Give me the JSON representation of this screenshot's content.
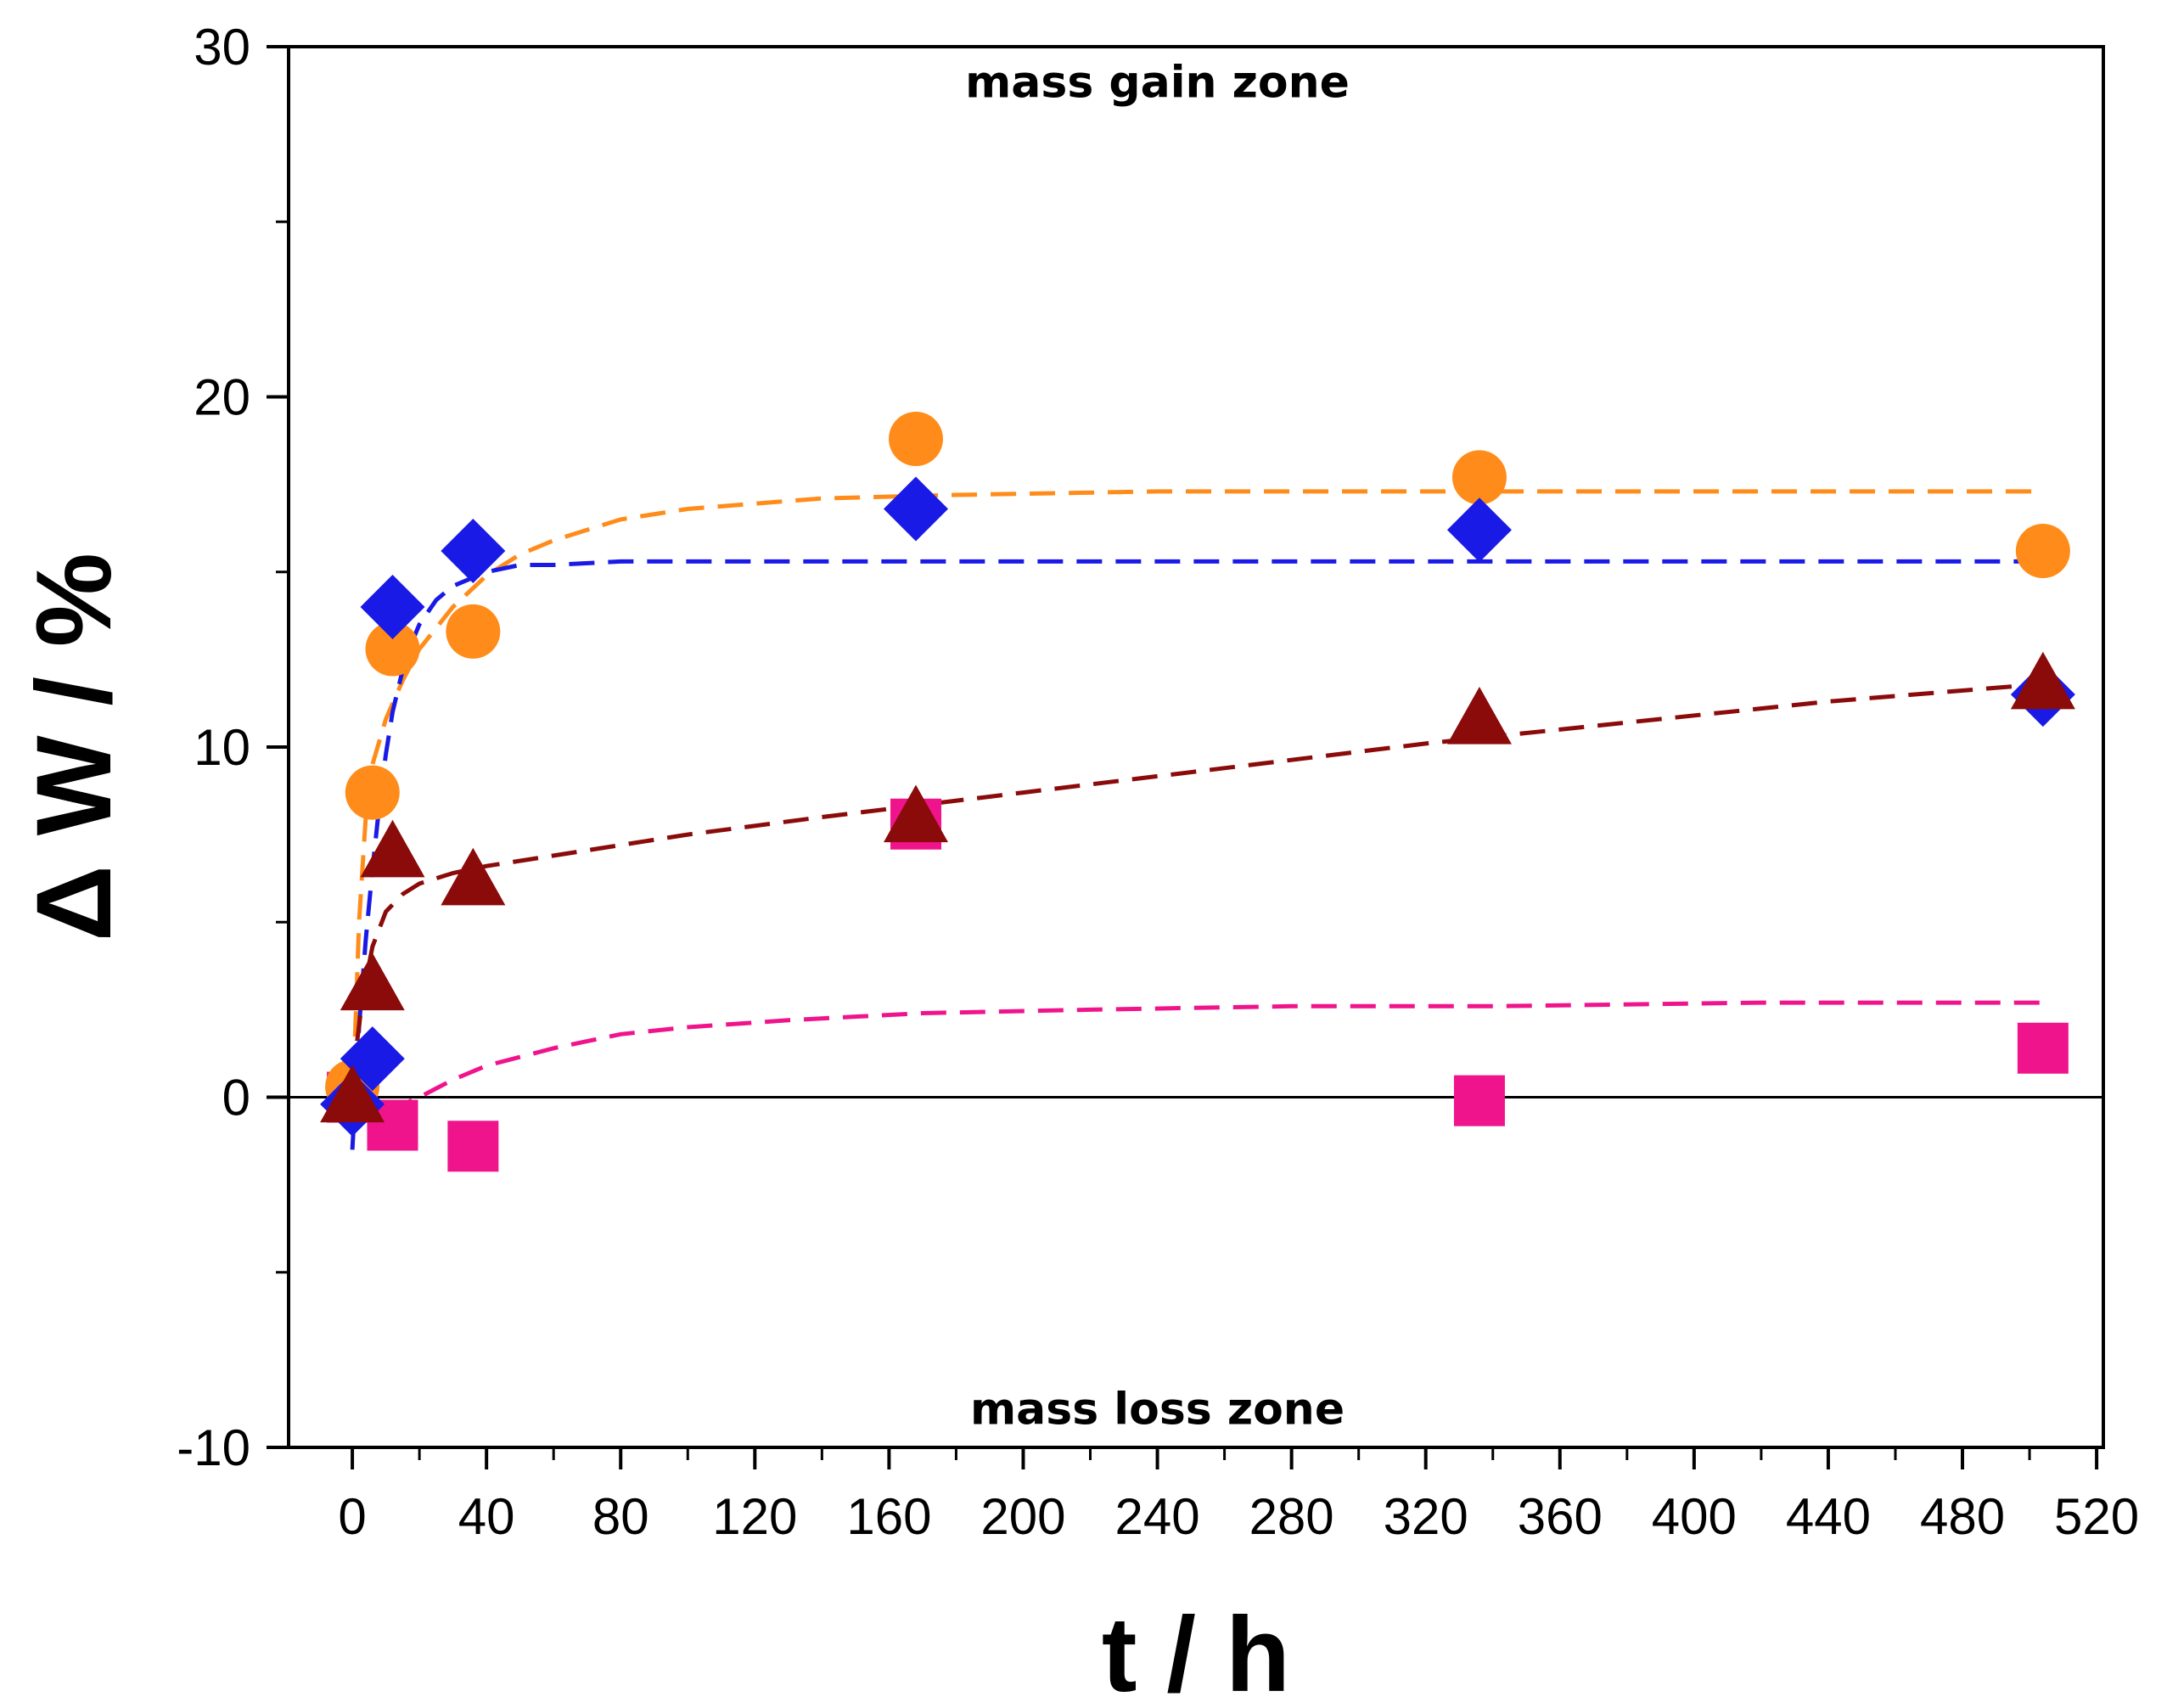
{
  "chart_data": {
    "type": "scatter",
    "title": "",
    "xlabel": "t / h",
    "ylabel": "Δ W / %",
    "xlim": [
      -19,
      522
    ],
    "ylim": [
      -10,
      30
    ],
    "x_ticks": [
      0,
      40,
      80,
      120,
      160,
      200,
      240,
      280,
      320,
      360,
      400,
      440,
      480,
      520
    ],
    "y_ticks": [
      -10,
      0,
      10,
      20,
      30
    ],
    "grid": false,
    "legend": "none",
    "annotations": [
      {
        "text": "mass gain zone",
        "x": 240,
        "y": 29.0
      },
      {
        "text": "mass loss zone",
        "x": 240,
        "y": -8.9
      }
    ],
    "series": [
      {
        "name": "orange circles",
        "color": "#FF8C1A",
        "marker": "circle",
        "x": [
          0,
          6,
          12,
          36,
          168,
          336,
          504
        ],
        "y": [
          0.3,
          8.7,
          12.8,
          13.3,
          18.8,
          17.7,
          15.6
        ],
        "fit": {
          "color": "#FF8C1A",
          "x": [
            0,
            2,
            4,
            6,
            10,
            15,
            20,
            30,
            40,
            50,
            60,
            80,
            100,
            140,
            180,
            240,
            300,
            360,
            420,
            504
          ],
          "y": [
            -0.5,
            5.0,
            8.0,
            9.5,
            10.8,
            11.9,
            12.8,
            14.0,
            14.9,
            15.5,
            15.9,
            16.5,
            16.8,
            17.1,
            17.2,
            17.3,
            17.3,
            17.3,
            17.3,
            17.3
          ]
        }
      },
      {
        "name": "blue diamonds",
        "color": "#1A1AE6",
        "marker": "diamond",
        "x": [
          0,
          6,
          12,
          36,
          168,
          336,
          504
        ],
        "y": [
          -0.2,
          1.1,
          14.0,
          15.6,
          16.8,
          16.2,
          11.5
        ],
        "fit": {
          "color": "#1A1AE6",
          "x": [
            0,
            2,
            4,
            6,
            8,
            10,
            12,
            16,
            20,
            25,
            30,
            40,
            50,
            60,
            80,
            120,
            200,
            300,
            400,
            504
          ],
          "y": [
            -1.5,
            2.0,
            4.5,
            6.5,
            8.3,
            9.8,
            11.0,
            12.6,
            13.5,
            14.2,
            14.6,
            15.0,
            15.2,
            15.2,
            15.3,
            15.3,
            15.3,
            15.3,
            15.3,
            15.3
          ]
        }
      },
      {
        "name": "dark red triangles",
        "color": "#8B0A0A",
        "marker": "triangle",
        "x": [
          0,
          6,
          12,
          36,
          168,
          336,
          504
        ],
        "y": [
          0.0,
          3.2,
          7.0,
          6.2,
          8.0,
          10.8,
          11.8
        ],
        "fit": {
          "color": "#8B0A0A",
          "x": [
            0,
            3,
            6,
            10,
            15,
            20,
            30,
            40,
            60,
            100,
            140,
            200,
            260,
            320,
            380,
            440,
            504
          ],
          "y": [
            0.5,
            2.8,
            4.3,
            5.3,
            5.8,
            6.1,
            6.4,
            6.6,
            6.9,
            7.5,
            8.0,
            8.7,
            9.4,
            10.1,
            10.7,
            11.3,
            11.8
          ]
        }
      },
      {
        "name": "pink squares",
        "color": "#F0148C",
        "marker": "square",
        "x": [
          0,
          12,
          36,
          168,
          336,
          504
        ],
        "y": [
          0.0,
          -0.8,
          -1.4,
          7.8,
          -0.1,
          1.4
        ],
        "fit": {
          "color": "#F0148C",
          "x": [
            0,
            10,
            20,
            30,
            40,
            60,
            80,
            100,
            130,
            170,
            220,
            280,
            340,
            420,
            504
          ],
          "y": [
            0.0,
            -0.4,
            0.0,
            0.5,
            0.9,
            1.4,
            1.8,
            2.0,
            2.2,
            2.4,
            2.5,
            2.6,
            2.6,
            2.7,
            2.7
          ]
        }
      }
    ]
  }
}
